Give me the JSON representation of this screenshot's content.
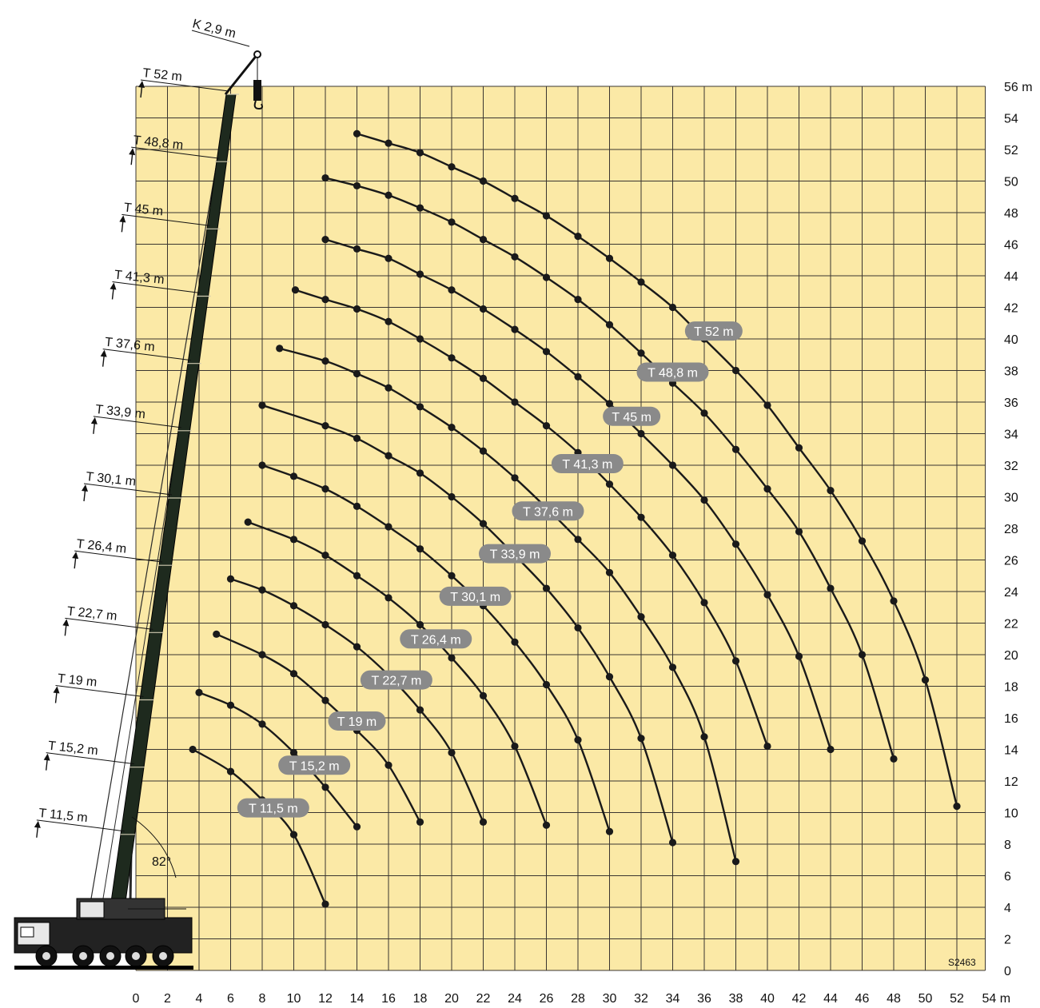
{
  "chart_data": {
    "type": "line",
    "title": "",
    "code": "S2463",
    "angle_label": "82°",
    "jib_label": "K 2,9 m",
    "x_unit": "m",
    "y_unit": "m",
    "xlim": [
      0,
      54
    ],
    "ylim": [
      0,
      56
    ],
    "x_ticks": [
      0,
      2,
      4,
      6,
      8,
      10,
      12,
      14,
      16,
      18,
      20,
      22,
      24,
      26,
      28,
      30,
      32,
      34,
      36,
      38,
      40,
      42,
      44,
      46,
      48,
      50,
      52,
      54
    ],
    "y_ticks": [
      0,
      2,
      4,
      6,
      8,
      10,
      12,
      14,
      16,
      18,
      20,
      22,
      24,
      26,
      28,
      30,
      32,
      34,
      36,
      38,
      40,
      42,
      44,
      46,
      48,
      50,
      52,
      54,
      56
    ],
    "x_tick_labels": [
      "0",
      "2",
      "4",
      "6",
      "8",
      "10",
      "12",
      "14",
      "16",
      "18",
      "20",
      "22",
      "24",
      "26",
      "28",
      "30",
      "32",
      "34",
      "36",
      "38",
      "40",
      "42",
      "44",
      "46",
      "48",
      "50",
      "52",
      "54 m"
    ],
    "y_tick_labels": [
      "0",
      "2",
      "4",
      "6",
      "8",
      "10",
      "12",
      "14",
      "16",
      "18",
      "20",
      "22",
      "24",
      "26",
      "28",
      "30",
      "32",
      "34",
      "36",
      "38",
      "40",
      "42",
      "44",
      "46",
      "48",
      "50",
      "52",
      "54",
      "56 m"
    ],
    "grid": true,
    "colors": {
      "background": "#fbe9a6",
      "grid": "#3a3530",
      "curve": "#1a1a1a",
      "pill": "#8a8a8a",
      "boom": "#1e2a1e"
    },
    "boom_lengths": [
      "T 11,5 m",
      "T 15,2 m",
      "T 19 m",
      "T 22,7 m",
      "T 26,4 m",
      "T 30,1 m",
      "T 33,9 m",
      "T 37,6 m",
      "T 41,3 m",
      "T 45 m",
      "T 48,8 m",
      "T 52 m"
    ],
    "series": [
      {
        "name": "T 11,5 m",
        "x": [
          3.6,
          6,
          8,
          10,
          12
        ],
        "y": [
          14,
          12.6,
          10.8,
          8.6,
          4.2
        ],
        "label_at": [
          8.7,
          10.3
        ]
      },
      {
        "name": "T 15,2 m",
        "x": [
          4,
          6,
          8,
          10,
          12,
          14
        ],
        "y": [
          17.6,
          16.8,
          15.6,
          13.8,
          11.6,
          9.1
        ],
        "label_at": [
          11.3,
          13
        ]
      },
      {
        "name": "T 19 m",
        "x": [
          5.1,
          8,
          10,
          12,
          14,
          16,
          18
        ],
        "y": [
          21.3,
          20,
          18.8,
          17.1,
          15.2,
          13,
          9.4
        ],
        "label_at": [
          14,
          15.8
        ]
      },
      {
        "name": "T 22,7 m",
        "x": [
          6,
          8,
          10,
          12,
          14,
          16,
          18,
          20,
          22
        ],
        "y": [
          24.8,
          24.1,
          23.1,
          21.9,
          20.5,
          18.7,
          16.5,
          13.8,
          9.4
        ],
        "label_at": [
          16.5,
          18.4
        ]
      },
      {
        "name": "T 26,4 m",
        "x": [
          7.1,
          10,
          12,
          14,
          16,
          18,
          20,
          22,
          24,
          26
        ],
        "y": [
          28.4,
          27.3,
          26.3,
          25,
          23.6,
          21.9,
          19.8,
          17.4,
          14.2,
          9.2
        ],
        "label_at": [
          19,
          21
        ]
      },
      {
        "name": "T 30,1 m",
        "x": [
          8,
          10,
          12,
          14,
          16,
          18,
          20,
          22,
          24,
          26,
          28,
          30
        ],
        "y": [
          32,
          31.3,
          30.5,
          29.4,
          28.1,
          26.7,
          25,
          23.1,
          20.8,
          18.1,
          14.6,
          8.8
        ],
        "label_at": [
          21.5,
          23.7
        ]
      },
      {
        "name": "T 33,9 m",
        "x": [
          8,
          12,
          14,
          16,
          18,
          20,
          22,
          24,
          26,
          28,
          30,
          32,
          34
        ],
        "y": [
          35.8,
          34.5,
          33.7,
          32.6,
          31.5,
          30,
          28.3,
          26.3,
          24.2,
          21.7,
          18.6,
          14.7,
          8.1
        ],
        "label_at": [
          24,
          26.4
        ]
      },
      {
        "name": "T 37,6 m",
        "x": [
          9.1,
          12,
          14,
          16,
          18,
          20,
          22,
          24,
          26,
          28,
          30,
          32,
          34,
          36,
          38
        ],
        "y": [
          39.4,
          38.6,
          37.8,
          36.9,
          35.7,
          34.4,
          32.9,
          31.2,
          29.3,
          27.3,
          25.2,
          22.4,
          19.2,
          14.8,
          6.9
        ],
        "label_at": [
          26.1,
          29.1
        ]
      },
      {
        "name": "T 41,3 m",
        "x": [
          10.1,
          12,
          14,
          16,
          18,
          20,
          22,
          24,
          26,
          28,
          30,
          32,
          34,
          36,
          38,
          40
        ],
        "y": [
          43.1,
          42.5,
          41.9,
          41.1,
          40,
          38.8,
          37.5,
          36,
          34.5,
          32.8,
          30.8,
          28.7,
          26.3,
          23.3,
          19.6,
          14.2
        ],
        "label_at": [
          28.6,
          32.1
        ]
      },
      {
        "name": "T 45 m",
        "x": [
          12,
          14,
          16,
          18,
          20,
          22,
          24,
          26,
          28,
          30,
          32,
          34,
          36,
          38,
          40,
          42,
          44
        ],
        "y": [
          46.3,
          45.7,
          45.1,
          44.1,
          43.1,
          41.9,
          40.6,
          39.2,
          37.6,
          35.9,
          34,
          32,
          29.8,
          27,
          23.8,
          19.9,
          14
        ],
        "label_at": [
          31.4,
          35.1
        ]
      },
      {
        "name": "T 48,8 m",
        "x": [
          12,
          14,
          16,
          18,
          20,
          22,
          24,
          26,
          28,
          30,
          32,
          34,
          36,
          38,
          40,
          42,
          44,
          46,
          48
        ],
        "y": [
          50.2,
          49.7,
          49.1,
          48.3,
          47.4,
          46.3,
          45.2,
          43.9,
          42.5,
          40.9,
          39.1,
          37.2,
          35.3,
          33,
          30.5,
          27.8,
          24.2,
          20,
          13.4
        ],
        "label_at": [
          34,
          37.9
        ]
      },
      {
        "name": "T 52 m",
        "x": [
          14,
          16,
          18,
          20,
          22,
          24,
          26,
          28,
          30,
          32,
          34,
          36,
          38,
          40,
          42,
          44,
          46,
          48,
          50,
          52
        ],
        "y": [
          53,
          52.4,
          51.8,
          50.9,
          50,
          48.9,
          47.8,
          46.5,
          45.1,
          43.6,
          42,
          40,
          38,
          35.8,
          33.1,
          30.4,
          27.2,
          23.4,
          18.4,
          10.4
        ],
        "label_at": [
          36.6,
          40.5
        ]
      }
    ]
  }
}
